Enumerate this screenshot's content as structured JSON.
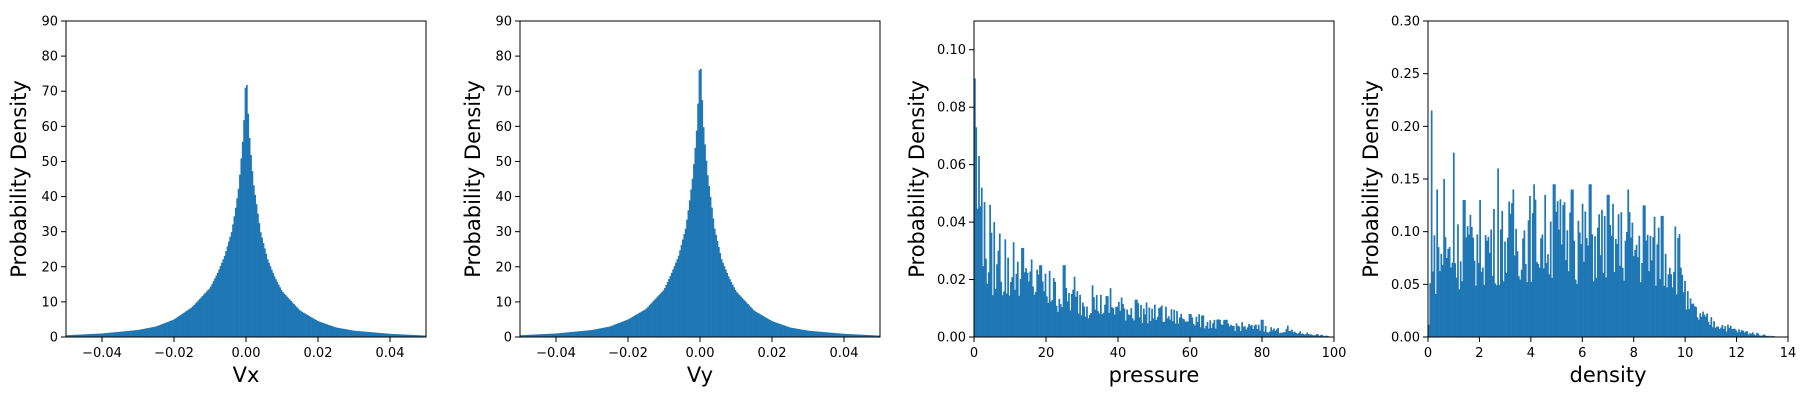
{
  "figure": {
    "bar_color": "#1f77b4",
    "axis_color": "#000000",
    "background": "#ffffff"
  },
  "chart_data": [
    {
      "type": "histogram",
      "xlabel": "Vx",
      "ylabel": "Probability Density",
      "xlim": [
        -0.05,
        0.05
      ],
      "ylim": [
        0,
        90
      ],
      "xticks": [
        -0.04,
        -0.02,
        0.0,
        0.02,
        0.04
      ],
      "xtick_labels": [
        "−0.04",
        "−0.02",
        "0.00",
        "0.02",
        "0.04"
      ],
      "yticks": [
        0,
        10,
        20,
        30,
        40,
        50,
        60,
        70,
        80,
        90
      ],
      "ytick_labels": [
        "0",
        "10",
        "20",
        "30",
        "40",
        "50",
        "60",
        "70",
        "80",
        "90"
      ],
      "x": [
        -0.05,
        -0.04,
        -0.03,
        -0.025,
        -0.02,
        -0.015,
        -0.01,
        -0.008,
        -0.006,
        -0.004,
        -0.003,
        -0.002,
        -0.001,
        -0.0005,
        0.0,
        0.0005,
        0.001,
        0.002,
        0.003,
        0.004,
        0.006,
        0.008,
        0.01,
        0.015,
        0.02,
        0.025,
        0.03,
        0.04,
        0.05
      ],
      "density": [
        0.5,
        1.0,
        2.0,
        3.0,
        5.0,
        8.5,
        14.0,
        18.0,
        23.0,
        30.0,
        36.0,
        43.0,
        55.0,
        63.0,
        76.0,
        65.0,
        56.0,
        44.0,
        37.0,
        30.0,
        22.0,
        17.0,
        13.0,
        7.5,
        4.5,
        2.7,
        1.8,
        0.9,
        0.4
      ],
      "grid": false,
      "legend": "none"
    },
    {
      "type": "histogram",
      "xlabel": "Vy",
      "ylabel": "Probability Density",
      "xlim": [
        -0.05,
        0.05
      ],
      "ylim": [
        0,
        90
      ],
      "xticks": [
        -0.04,
        -0.02,
        0.0,
        0.02,
        0.04
      ],
      "xtick_labels": [
        "−0.04",
        "−0.02",
        "0.00",
        "0.02",
        "0.04"
      ],
      "yticks": [
        0,
        10,
        20,
        30,
        40,
        50,
        60,
        70,
        80,
        90
      ],
      "ytick_labels": [
        "0",
        "10",
        "20",
        "30",
        "40",
        "50",
        "60",
        "70",
        "80",
        "90"
      ],
      "x": [
        -0.05,
        -0.04,
        -0.03,
        -0.025,
        -0.02,
        -0.015,
        -0.01,
        -0.008,
        -0.006,
        -0.004,
        -0.003,
        -0.002,
        -0.001,
        -0.0005,
        0.0,
        0.0005,
        0.001,
        0.002,
        0.003,
        0.004,
        0.006,
        0.008,
        0.01,
        0.015,
        0.02,
        0.025,
        0.03,
        0.04,
        0.05
      ],
      "density": [
        0.5,
        1.0,
        2.0,
        3.0,
        5.0,
        8.0,
        13.5,
        18.0,
        23.0,
        31.0,
        38.0,
        46.0,
        58.0,
        68.0,
        81.0,
        69.0,
        59.0,
        47.0,
        39.0,
        31.0,
        22.0,
        17.0,
        13.0,
        7.5,
        4.5,
        2.7,
        1.8,
        0.9,
        0.4
      ],
      "grid": false,
      "legend": "none"
    },
    {
      "type": "histogram",
      "xlabel": "pressure",
      "ylabel": "Probability Density",
      "xlim": [
        0,
        100
      ],
      "ylim": [
        0,
        0.11
      ],
      "xticks": [
        0,
        20,
        40,
        60,
        80,
        100
      ],
      "xtick_labels": [
        "0",
        "20",
        "40",
        "60",
        "80",
        "100"
      ],
      "yticks": [
        0.0,
        0.02,
        0.04,
        0.06,
        0.08,
        0.1
      ],
      "ytick_labels": [
        "0.00",
        "0.02",
        "0.04",
        "0.06",
        "0.08",
        "0.10"
      ],
      "x": [
        0,
        1,
        2,
        3,
        5,
        8,
        10,
        15,
        20,
        25,
        30,
        40,
        50,
        60,
        70,
        80,
        90,
        95,
        100
      ],
      "density": [
        0.035,
        0.05,
        0.04,
        0.03,
        0.025,
        0.022,
        0.02,
        0.018,
        0.016,
        0.014,
        0.012,
        0.01,
        0.008,
        0.006,
        0.004,
        0.003,
        0.0015,
        0.0008,
        0.0
      ],
      "peaks": [
        [
          0.2,
          0.09
        ],
        [
          0.7,
          0.073
        ],
        [
          1.4,
          0.063
        ],
        [
          2.2,
          0.052
        ],
        [
          3.0,
          0.047
        ],
        [
          4.3,
          0.046
        ],
        [
          5.5,
          0.04
        ],
        [
          7.2,
          0.036
        ],
        [
          8.8,
          0.034
        ],
        [
          11,
          0.033
        ],
        [
          13.5,
          0.031
        ],
        [
          16,
          0.027
        ],
        [
          18.5,
          0.025
        ],
        [
          21,
          0.023
        ],
        [
          25,
          0.025
        ],
        [
          28,
          0.021
        ],
        [
          33,
          0.018
        ],
        [
          38,
          0.017
        ],
        [
          45,
          0.013
        ],
        [
          52,
          0.011
        ],
        [
          60,
          0.008
        ],
        [
          70,
          0.006
        ],
        [
          80,
          0.006
        ],
        [
          87,
          0.004
        ]
      ],
      "grid": false,
      "legend": "none"
    },
    {
      "type": "histogram",
      "xlabel": "density",
      "ylabel": "Probability Density",
      "xlim": [
        0,
        14
      ],
      "ylim": [
        0,
        0.3
      ],
      "xticks": [
        0,
        2,
        4,
        6,
        8,
        10,
        12,
        14
      ],
      "xtick_labels": [
        "0",
        "2",
        "4",
        "6",
        "8",
        "10",
        "12",
        "14"
      ],
      "yticks": [
        0.0,
        0.05,
        0.1,
        0.15,
        0.2,
        0.25,
        0.3
      ],
      "ytick_labels": [
        "0.00",
        "0.05",
        "0.10",
        "0.15",
        "0.20",
        "0.25",
        "0.30"
      ],
      "x": [
        0,
        0.05,
        0.1,
        0.2,
        0.5,
        1,
        2,
        3,
        4,
        5,
        6,
        7,
        8,
        9,
        9.5,
        9.9,
        10.0,
        10.1,
        10.5,
        11,
        12,
        13,
        13.5,
        14
      ],
      "density": [
        0.0,
        0.02,
        0.06,
        0.07,
        0.075,
        0.08,
        0.085,
        0.09,
        0.095,
        0.095,
        0.09,
        0.09,
        0.085,
        0.08,
        0.075,
        0.07,
        0.04,
        0.03,
        0.02,
        0.014,
        0.006,
        0.002,
        0.0005,
        0.0
      ],
      "peaks": [
        [
          0.12,
          0.215
        ],
        [
          0.35,
          0.14
        ],
        [
          0.6,
          0.15
        ],
        [
          1.0,
          0.175
        ],
        [
          1.4,
          0.13
        ],
        [
          2.0,
          0.13
        ],
        [
          2.7,
          0.16
        ],
        [
          3.3,
          0.14
        ],
        [
          4.1,
          0.145
        ],
        [
          4.9,
          0.145
        ],
        [
          5.6,
          0.14
        ],
        [
          6.3,
          0.145
        ],
        [
          7.0,
          0.135
        ],
        [
          7.8,
          0.14
        ],
        [
          8.4,
          0.125
        ],
        [
          9.1,
          0.115
        ],
        [
          9.6,
          0.105
        ]
      ],
      "grid": false,
      "legend": "none"
    }
  ]
}
